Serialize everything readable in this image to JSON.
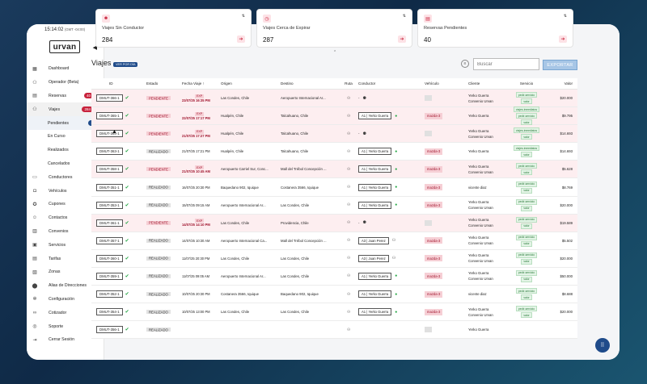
{
  "header": {
    "time": "15:14:02",
    "tz": "(GMT -04:00)",
    "logo": "urvan"
  },
  "sidebar": {
    "items": [
      {
        "label": "Dashboard",
        "icon": "dashboard-icon"
      },
      {
        "label": "Operador (Beta)",
        "icon": "operator-icon"
      },
      {
        "label": "Reservas",
        "icon": "reservas-icon",
        "badge": "40"
      },
      {
        "label": "Viajes",
        "icon": "viajes-icon",
        "badge": "284"
      },
      {
        "label": "Pendientes",
        "sub": true,
        "badge": "287"
      },
      {
        "label": "En Curso",
        "sub": true
      },
      {
        "label": "Realizados",
        "sub": true
      },
      {
        "label": "Cancelados",
        "sub": true
      },
      {
        "label": "Conductores",
        "icon": "conductores-icon"
      },
      {
        "label": "Vehículos",
        "icon": "car-icon"
      },
      {
        "label": "Cupones",
        "icon": "coupon-icon"
      },
      {
        "label": "Contactos",
        "icon": "contacts-icon"
      },
      {
        "label": "Convenios",
        "icon": "convenios-icon"
      },
      {
        "label": "Servicios",
        "icon": "servicios-icon"
      },
      {
        "label": "Tarifas",
        "icon": "tarifas-icon"
      },
      {
        "label": "Zonas",
        "icon": "zonas-icon"
      },
      {
        "label": "Alias de Direcciones",
        "icon": "location-icon"
      },
      {
        "label": "Configuración",
        "icon": "gear-icon"
      },
      {
        "label": "Cotizador",
        "icon": "link-icon"
      },
      {
        "label": "Soporte",
        "icon": "support-icon"
      },
      {
        "label": "Cerrar Sesión",
        "icon": "logout-icon"
      }
    ]
  },
  "cards": [
    {
      "title": "Viajes Sin Conductor",
      "value": "284"
    },
    {
      "title": "Viajes Cerca de Expirar",
      "value": "287"
    },
    {
      "title": "Reservas Pendientes",
      "value": "40"
    }
  ],
  "page": {
    "title": "Viajes",
    "tag": "VER POR DÍA",
    "search_placeholder": "Buscar",
    "export_label": "EXPORTAR"
  },
  "table": {
    "headers": [
      "ID",
      "Estado",
      "Fecha Viaje ↑",
      "Origen",
      "Destino",
      "Ruta",
      "Conductor",
      "Vehículo",
      "Cliente",
      "Servicio",
      "Valor"
    ],
    "rows": [
      {
        "id": "DMUT-366-1",
        "estado": "PENDIENTE",
        "exp": "EXP",
        "fecha": "23/07/25 16:35 PM",
        "origen": "Las Condes, Chile",
        "destino": "Aeropuerto Internacional Ar...",
        "conductor": "-",
        "vehiculo": "",
        "cliente1": "Yerko Guerra",
        "cliente2": "Convenio Urvan",
        "servicio": [
          "pedir-servicio",
          "valor"
        ],
        "valor": "$20.000"
      },
      {
        "id": "DMUT-365-1",
        "estado": "PENDIENTE",
        "exp": "EXP",
        "fecha": "22/07/25 17:17 PM",
        "origen": "Hualpén, Chile",
        "destino": "Talcahuano, Chile",
        "conductor": "A1 | Yerko Guerra",
        "vehiculo": "mazda-3",
        "cliente1": "Yerko Guerra",
        "cliente2": "",
        "servicio": [
          "viajes-inmediatos",
          "pedir-servicio",
          "valor"
        ],
        "valor": "$9.795"
      },
      {
        "id": "DMUT-364-1",
        "estado": "PENDIENTE",
        "exp": "EXP",
        "fecha": "21/07/25 17:27 PM",
        "origen": "Hualpén, Chile",
        "destino": "Talcahuano, Chile",
        "conductor": "-",
        "vehiculo": "",
        "cliente1": "Yerko Guerra",
        "cliente2": "Convenio Urvan",
        "servicio": [
          "viajes-inmediatos",
          "valor"
        ],
        "valor": "$14.693"
      },
      {
        "id": "DMUT-363-1",
        "estado": "REALIZADO",
        "exp": "",
        "fecha": "21/07/25 17:21 PM",
        "origen": "Hualpén, Chile",
        "destino": "Talcahuano, Chile",
        "conductor": "A1 | Yerko Guerra",
        "vehiculo": "mazda-3",
        "cliente1": "Yerko Guerra",
        "cliente2": "",
        "servicio": [
          "viajes-inmediatos",
          "valor"
        ],
        "valor": "$14.693"
      },
      {
        "id": "DMUT-358-1",
        "estado": "PENDIENTE",
        "exp": "EXP",
        "fecha": "21/07/25 10:45 AM",
        "origen": "Aeropuerto Carriel Sur, Conc...",
        "destino": "Mall del Trébol Concepción ...",
        "conductor": "A1 | Yerko Guerra",
        "vehiculo": "mazda-3",
        "cliente1": "Yerko Guerra",
        "cliente2": "Convenio Urvan",
        "servicio": [
          "pedir-servicio",
          "valor"
        ],
        "valor": "$5.628"
      },
      {
        "id": "DMUT-351-1",
        "estado": "REALIZADO",
        "exp": "",
        "fecha": "16/07/25 20:30 PM",
        "origen": "Baquedano 902, Iquique",
        "destino": "Costanera 3566, Iquique",
        "conductor": "A1 | Yerko Guerra",
        "vehiculo": "mazda-3",
        "cliente1": "vicente diaz",
        "cliente2": "",
        "servicio": [
          "pedir-servicio",
          "valor"
        ],
        "valor": "$8.769"
      },
      {
        "id": "DMUT-353-1",
        "estado": "REALIZADO",
        "exp": "",
        "fecha": "15/07/25 09:15 AM",
        "origen": "Aeropuerto Internacional Ar...",
        "destino": "Las Condes, Chile",
        "conductor": "A1 | Yerko Guerra",
        "vehiculo": "mazda-3",
        "cliente1": "Yerko Guerra",
        "cliente2": "Convenio Urvan",
        "servicio": [
          "pedir-servicio",
          "valor"
        ],
        "valor": "$20.000"
      },
      {
        "id": "DMUT-361-1",
        "estado": "PENDIENTE",
        "exp": "EXP",
        "fecha": "14/07/25 14:10 PM",
        "origen": "Las Condes, Chile",
        "destino": "Providencia, Chile",
        "conductor": "-",
        "vehiculo": "",
        "cliente1": "Yerko Guerra",
        "cliente2": "Convenio Urvan",
        "servicio": [
          "pedir-servicio",
          "valor"
        ],
        "valor": "$19.589"
      },
      {
        "id": "DMUT-357-1",
        "estado": "REALIZADO",
        "exp": "",
        "fecha": "14/07/25 10:30 AM",
        "origen": "Aeropuerto Internacional Ca...",
        "destino": "Mall del Trébol Concepción ...",
        "conductor": "A3 | Juan Perez",
        "vehiculo": "mazda-3",
        "cliente1": "Yerko Guerra",
        "cliente2": "Convenio Urvan",
        "servicio": [
          "pedir-servicio",
          "valor"
        ],
        "valor": "$5.502"
      },
      {
        "id": "DMUT-360-1",
        "estado": "REALIZADO",
        "exp": "",
        "fecha": "11/07/25 20:30 PM",
        "origen": "Las Condes, Chile",
        "destino": "Las Condes, Chile",
        "conductor": "A3 | Juan Perez",
        "vehiculo": "mazda-3",
        "cliente1": "Yerko Guerra",
        "cliente2": "Convenio Urvan",
        "servicio": [
          "pedir-servicio",
          "valor"
        ],
        "valor": "$20.000"
      },
      {
        "id": "DMUT-359-1",
        "estado": "REALIZADO",
        "exp": "",
        "fecha": "11/07/25 09:05 AM",
        "origen": "Aeropuerto Internacional Ar...",
        "destino": "Las Condes, Chile",
        "conductor": "A1 | Yerko Guerra",
        "vehiculo": "mazda-3",
        "cliente1": "Yerko Guerra",
        "cliente2": "Convenio Urvan",
        "servicio": [
          "pedir-servicio",
          "valor"
        ],
        "valor": "$50.000"
      },
      {
        "id": "DMUT-352-1",
        "estado": "REALIZADO",
        "exp": "",
        "fecha": "10/07/25 20:30 PM",
        "origen": "Costanera 3566, Iquique",
        "destino": "Baquedano 902, Iquique",
        "conductor": "A1 | Yerko Guerra",
        "vehiculo": "mazda-3",
        "cliente1": "vicente diaz",
        "cliente2": "",
        "servicio": [
          "pedir-servicio",
          "valor"
        ],
        "valor": "$8.688"
      },
      {
        "id": "DMUT-354-1",
        "estado": "REALIZADO",
        "exp": "",
        "fecha": "10/07/25 13:00 PM",
        "origen": "Las Condes, Chile",
        "destino": "Las Condes, Chile",
        "conductor": "A1 | Yerko Guerra",
        "vehiculo": "mazda-3",
        "cliente1": "Yerko Guerra",
        "cliente2": "Convenio Urvan",
        "servicio": [
          "pedir-servicio",
          "valor"
        ],
        "valor": "$20.000"
      },
      {
        "id": "DMUT-356-1",
        "estado": "REALIZADO",
        "exp": "",
        "fecha": "",
        "origen": "",
        "destino": "",
        "conductor": "",
        "vehiculo": "",
        "cliente1": "Yerko Guerra",
        "cliente2": "",
        "servicio": [],
        "valor": ""
      }
    ]
  },
  "colors": {
    "accent": "#c8233d",
    "primary": "#1f4b8a"
  }
}
